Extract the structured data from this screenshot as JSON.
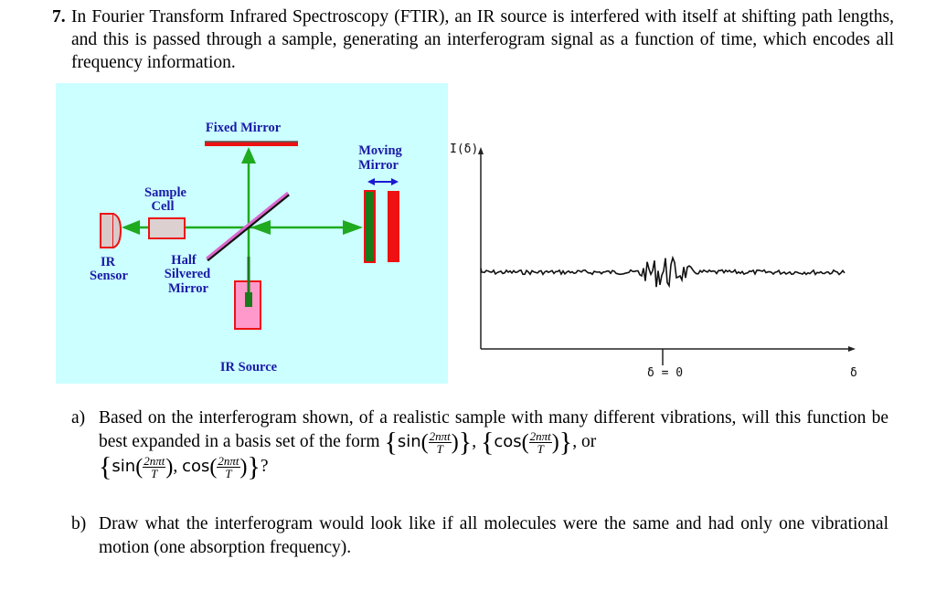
{
  "question": {
    "number": "7.",
    "text": "In Fourier Transform Infrared Spectroscopy (FTIR), an IR source is interfered with itself at shifting path lengths, and this is passed through a sample, generating an interferogram signal as a function of time, which encodes all frequency information."
  },
  "diagram": {
    "labels": {
      "fixed_mirror": "Fixed Mirror",
      "moving_mirror_1": "Moving",
      "moving_mirror_2": "Mirror",
      "sample_cell_1": "Sample",
      "sample_cell_2": "Cell",
      "ir_sensor_1": "IR",
      "ir_sensor_2": "Sensor",
      "half_mirror_1": "Half",
      "half_mirror_2": "Silvered",
      "half_mirror_3": "Mirror",
      "ir_source": "IR Source"
    },
    "colors": {
      "background": "#ccffff",
      "beam": "#1faa1f",
      "mirror": "#ee1111",
      "label": "#1a1aa8",
      "splitter": "#dd66cc"
    }
  },
  "interferogram": {
    "y_label": "I(δ)",
    "x_label": "δ",
    "center_label": "δ = 0"
  },
  "parts": {
    "a": {
      "label": "a)",
      "text1": "Based on the interferogram shown, of a realistic sample with many different vibrations, will this function be best expanded in a basis set of the form",
      "sin": "sin",
      "cos": "cos",
      "num": "2nπt",
      "den": "T",
      "or": "or",
      "end": "?"
    },
    "b": {
      "label": "b)",
      "text": "Draw what the interferogram would look like if all molecules were the same and had only one vibrational motion (one absorption frequency)."
    }
  }
}
